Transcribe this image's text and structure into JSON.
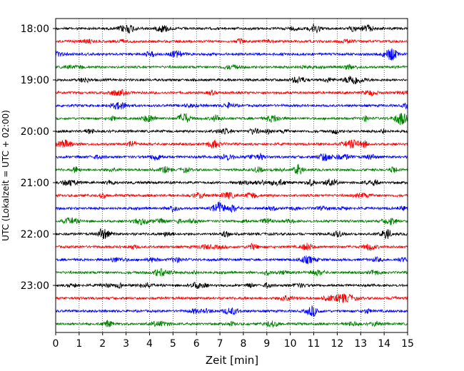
{
  "chart_data": {
    "type": "line",
    "xlabel": "Zeit  [min]",
    "ylabel": "UTC (Lokalzeit = UTC + 02:00)",
    "xlim": [
      0,
      15
    ],
    "x_ticks": [
      "0",
      "1",
      "2",
      "3",
      "4",
      "5",
      "6",
      "7",
      "8",
      "9",
      "10",
      "11",
      "12",
      "13",
      "14",
      "15"
    ],
    "y_ticks": [
      "18:00",
      "19:00",
      "20:00",
      "21:00",
      "22:00",
      "23:00"
    ],
    "grid": "vertical dotted",
    "traces_per_hour": 4,
    "trace_start_times": [
      "18:00",
      "18:15",
      "18:30",
      "18:45",
      "19:00",
      "19:15",
      "19:30",
      "19:45",
      "20:00",
      "20:15",
      "20:30",
      "20:45",
      "21:00",
      "21:15",
      "21:30",
      "21:45",
      "22:00",
      "22:15",
      "22:30",
      "22:45",
      "23:00",
      "23:15",
      "23:30",
      "23:45"
    ],
    "trace_colors": [
      "#000000",
      "#ff0000",
      "#0000ff",
      "#008000"
    ]
  }
}
